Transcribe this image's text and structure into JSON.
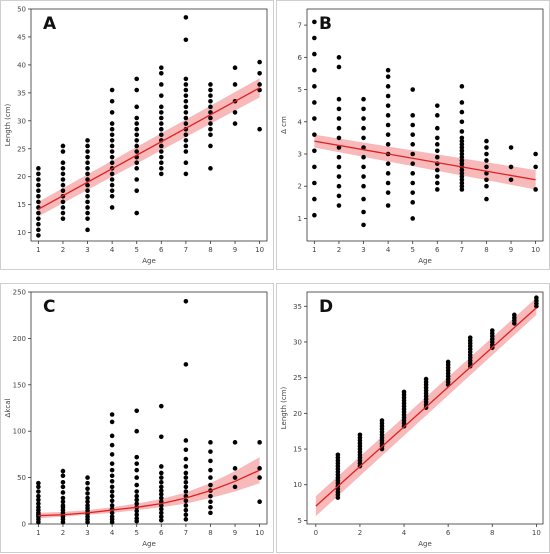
{
  "chart_data": [
    {
      "type": "scatter",
      "panel_label": "A",
      "xlabel": "Age",
      "ylabel": "Length (cm)",
      "xlim": [
        0.7,
        10.3
      ],
      "ylim": [
        8.5,
        50
      ],
      "xticks": [
        1,
        2,
        3,
        4,
        5,
        6,
        7,
        8,
        9,
        10
      ],
      "yticks": [
        10,
        15,
        20,
        25,
        30,
        35,
        40,
        45,
        50
      ],
      "points": {
        "1": [
          9.5,
          10.5,
          11.5,
          12.5,
          13.5,
          14.5,
          15.5,
          16.5,
          17.5,
          18.5,
          19.5,
          20.5,
          21.5
        ],
        "2": [
          12.5,
          13.5,
          14.5,
          15.5,
          16.5,
          17.5,
          18.5,
          19.5,
          20.5,
          21.5,
          22.5,
          24.5,
          25.5
        ],
        "3": [
          10.5,
          12.5,
          13.5,
          14.5,
          15.5,
          16.5,
          17.5,
          18.5,
          19.5,
          20.5,
          21.5,
          22.5,
          23.5,
          24.5,
          25.5,
          26.5
        ],
        "4": [
          14.5,
          16.5,
          17.5,
          18.5,
          19.5,
          20.5,
          21.5,
          22.5,
          23.5,
          24.5,
          25.5,
          26.5,
          27.5,
          28.5,
          29.5,
          31.5,
          33.5,
          35.5
        ],
        "5": [
          13.5,
          17.5,
          19.5,
          21.5,
          22.5,
          23.5,
          24.5,
          25.5,
          26.5,
          27.5,
          28.5,
          29.5,
          30.5,
          32.5,
          35.5,
          37.5
        ],
        "6": [
          20.5,
          21.5,
          22.5,
          23.5,
          24.5,
          25.5,
          26.5,
          27.5,
          28.5,
          29.5,
          30.5,
          31.5,
          32.5,
          34.5,
          36.5,
          38.5,
          39.5
        ],
        "7": [
          20.5,
          22.5,
          24.5,
          25.5,
          26.5,
          27.5,
          28.5,
          29.5,
          30.5,
          31.5,
          32.5,
          33.5,
          34.5,
          35.5,
          36.5,
          37.5,
          44.5,
          48.5
        ],
        "8": [
          21.5,
          25.5,
          27.5,
          28.5,
          29.5,
          30.5,
          31.5,
          32.5,
          33.5,
          34.5,
          35.5,
          36.5
        ],
        "9": [
          29.5,
          31.5,
          33.5,
          36.5,
          39.5
        ],
        "10": [
          28.5,
          35.5,
          36.5,
          38.5,
          40.5
        ]
      },
      "fit": {
        "x": [
          1,
          10
        ],
        "y": [
          14.2,
          35.9
        ],
        "ci_lower": [
          12.9,
          34.2
        ],
        "ci_upper": [
          15.5,
          37.6
        ]
      }
    },
    {
      "type": "scatter",
      "panel_label": "B",
      "xlabel": "Age",
      "ylabel": "Δ cm",
      "xlim": [
        0.7,
        10.3
      ],
      "ylim": [
        0.3,
        7.5
      ],
      "xticks": [
        1,
        2,
        3,
        4,
        5,
        6,
        7,
        8,
        9,
        10
      ],
      "yticks": [
        1,
        2,
        3,
        4,
        5,
        6,
        7
      ],
      "points": {
        "1": [
          1.1,
          1.6,
          2.1,
          2.6,
          3.1,
          3.6,
          4.1,
          4.6,
          5.1,
          5.6,
          6.1,
          6.6,
          7.1
        ],
        "2": [
          1.4,
          1.7,
          2.0,
          2.3,
          2.6,
          2.9,
          3.2,
          3.5,
          3.8,
          4.1,
          4.4,
          4.7,
          5.7,
          6.0
        ],
        "3": [
          0.8,
          1.2,
          1.6,
          2.0,
          2.3,
          2.6,
          2.9,
          3.2,
          3.5,
          3.8,
          4.1,
          4.4,
          4.7
        ],
        "4": [
          1.4,
          1.8,
          2.1,
          2.4,
          2.7,
          3.0,
          3.3,
          3.6,
          3.9,
          4.2,
          4.5,
          4.8,
          5.1,
          5.4,
          5.6
        ],
        "5": [
          1.0,
          1.5,
          1.8,
          2.1,
          2.4,
          2.7,
          3.0,
          3.3,
          3.6,
          3.9,
          4.2,
          5.0
        ],
        "6": [
          1.9,
          2.1,
          2.3,
          2.5,
          2.7,
          2.9,
          3.1,
          3.3,
          3.5,
          3.8,
          4.2,
          4.5
        ],
        "7": [
          1.9,
          2.0,
          2.1,
          2.2,
          2.3,
          2.4,
          2.5,
          2.6,
          2.7,
          2.8,
          2.9,
          3.0,
          3.1,
          3.2,
          3.3,
          3.4,
          3.5,
          3.7,
          4.0,
          4.3,
          4.6,
          5.1
        ],
        "8": [
          1.6,
          2.0,
          2.2,
          2.4,
          2.6,
          2.8,
          3.0,
          3.2,
          3.4
        ],
        "9": [
          2.2,
          2.6,
          3.2
        ],
        "10": [
          1.9,
          2.6,
          3.0
        ]
      },
      "fit": {
        "x": [
          1,
          10
        ],
        "y": [
          3.4,
          2.2
        ],
        "ci_lower": [
          3.2,
          1.9
        ],
        "ci_upper": [
          3.6,
          2.5
        ]
      }
    },
    {
      "type": "scatter",
      "panel_label": "C",
      "xlabel": "Age",
      "ylabel": "Δkcal",
      "xlim": [
        0.7,
        10.3
      ],
      "ylim": [
        0,
        250
      ],
      "xticks": [
        1,
        2,
        3,
        4,
        5,
        6,
        7,
        8,
        9,
        10
      ],
      "yticks": [
        0,
        50,
        100,
        150,
        200,
        250
      ],
      "points": {
        "1": [
          2,
          5,
          8,
          10,
          12,
          15,
          18,
          22,
          26,
          30,
          35,
          40,
          44
        ],
        "2": [
          2,
          5,
          8,
          10,
          12,
          15,
          18,
          20,
          24,
          28,
          34,
          40,
          45,
          52,
          57
        ],
        "3": [
          2,
          5,
          8,
          11,
          14,
          17,
          20,
          24,
          28,
          33,
          38,
          44,
          50
        ],
        "4": [
          2,
          5,
          8,
          12,
          16,
          20,
          25,
          30,
          35,
          40,
          46,
          52,
          58,
          65,
          75,
          85,
          95,
          110,
          118
        ],
        "5": [
          3,
          6,
          10,
          14,
          18,
          22,
          26,
          30,
          35,
          42,
          50,
          58,
          65,
          72,
          100,
          122
        ],
        "6": [
          4,
          8,
          12,
          16,
          20,
          24,
          28,
          32,
          36,
          40,
          45,
          50,
          55,
          62,
          94,
          127
        ],
        "7": [
          5,
          10,
          15,
          20,
          25,
          30,
          35,
          40,
          45,
          50,
          55,
          62,
          70,
          80,
          90,
          172,
          240
        ],
        "8": [
          12,
          18,
          24,
          30,
          36,
          42,
          50,
          58,
          68,
          78,
          88
        ],
        "9": [
          40,
          50,
          60,
          88
        ],
        "10": [
          24,
          50,
          60,
          88
        ]
      },
      "fit": {
        "x": [
          1,
          2,
          3,
          4,
          5,
          6,
          7,
          8,
          9,
          10
        ],
        "y": [
          9,
          10,
          12,
          15,
          18,
          22,
          28,
          36,
          46,
          58
        ],
        "ci_lower": [
          6,
          8,
          10,
          12,
          15,
          18,
          22,
          28,
          35,
          44
        ],
        "ci_upper": [
          12,
          13,
          15,
          18,
          22,
          27,
          34,
          44,
          57,
          72
        ]
      }
    },
    {
      "type": "scatter",
      "panel_label": "D",
      "xlabel": "Age",
      "ylabel": "Length (cm)",
      "xlim": [
        -0.4,
        10.3
      ],
      "ylim": [
        4.5,
        37
      ],
      "xticks": [
        0,
        2,
        4,
        6,
        8,
        10
      ],
      "yticks": [
        5,
        10,
        15,
        20,
        25,
        30,
        35
      ],
      "points": {
        "1": [
          8.2,
          8.6,
          9.0,
          9.4,
          9.8,
          10.2,
          10.6,
          11.0,
          11.4,
          11.8,
          12.2,
          12.6,
          13.0,
          13.4,
          13.8,
          14.2
        ],
        "2": [
          12.6,
          13.0,
          13.4,
          13.8,
          14.2,
          14.6,
          15.0,
          15.4,
          15.8,
          16.2,
          16.6,
          17.0
        ],
        "3": [
          15.0,
          15.4,
          15.8,
          16.2,
          16.6,
          17.0,
          17.4,
          17.8,
          18.2,
          18.6,
          19.0
        ],
        "4": [
          18.2,
          18.6,
          19.0,
          19.4,
          19.8,
          20.2,
          20.6,
          21.0,
          21.4,
          21.8,
          22.2,
          22.6,
          23.0
        ],
        "5": [
          20.8,
          21.2,
          21.6,
          22.0,
          22.4,
          22.8,
          23.2,
          23.6,
          24.0,
          24.4,
          24.8
        ],
        "6": [
          24.0,
          24.4,
          24.8,
          25.2,
          25.6,
          26.0,
          26.4,
          26.8,
          27.2
        ],
        "7": [
          26.6,
          27.0,
          27.4,
          27.8,
          28.2,
          28.6,
          29.0,
          29.4,
          29.8,
          30.2,
          30.6
        ],
        "8": [
          29.2,
          29.6,
          30.0,
          30.4,
          30.8,
          31.2,
          31.6
        ],
        "9": [
          32.6,
          33.0,
          33.4,
          33.8
        ],
        "10": [
          35.0,
          35.4,
          35.8,
          36.2
        ]
      },
      "fit": {
        "x": [
          0,
          10
        ],
        "y": [
          7.0,
          34.8
        ],
        "ci_lower": [
          5.6,
          33.8
        ],
        "ci_upper": [
          8.4,
          36.2
        ]
      }
    }
  ]
}
